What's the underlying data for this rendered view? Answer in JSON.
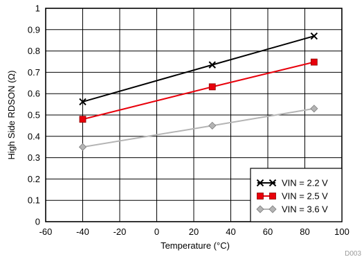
{
  "chart_data": {
    "type": "line",
    "xlabel": "Temperature (°C)",
    "ylabel": "High Side RDSON (Ω)",
    "xlim": [
      -60,
      100
    ],
    "ylim": [
      0,
      1
    ],
    "x_ticks": [
      "-60",
      "-40",
      "-20",
      "0",
      "20",
      "40",
      "60",
      "80",
      "100"
    ],
    "y_ticks": [
      "0",
      "0.1",
      "0.2",
      "0.3",
      "0.4",
      "0.5",
      "0.6",
      "0.7",
      "0.8",
      "0.9",
      "1"
    ],
    "grid": true,
    "legend_position": "bottom-right",
    "x": [
      -40,
      30,
      85
    ],
    "series": [
      {
        "name": "VIN = 2.2 V",
        "values": [
          0.562,
          0.735,
          0.87
        ],
        "color": "#000000",
        "line_color": "#000000",
        "marker": "x"
      },
      {
        "name": "VIN = 2.5 V",
        "values": [
          0.48,
          0.632,
          0.748
        ],
        "color": "#e8000b",
        "line_color": "#e8000b",
        "marker": "square"
      },
      {
        "name": "VIN = 3.6 V",
        "values": [
          0.35,
          0.45,
          0.53
        ],
        "color": "#b4b4b4",
        "line_color": "#b4b4b4",
        "marker": "diamond"
      }
    ],
    "figure_id": "D003"
  }
}
